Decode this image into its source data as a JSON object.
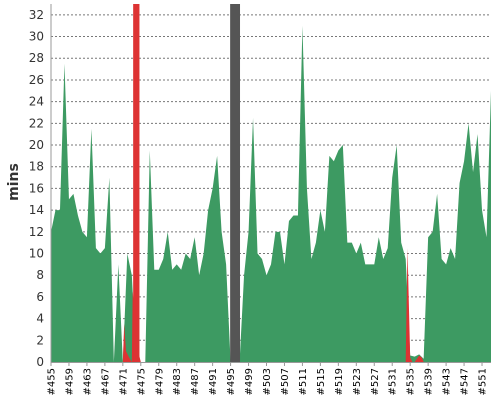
{
  "chart_data": {
    "type": "area",
    "title": "",
    "xlabel": "",
    "ylabel": "mins",
    "ylim": [
      0,
      33
    ],
    "y_ticks": [
      0,
      2,
      4,
      6,
      8,
      10,
      12,
      14,
      16,
      18,
      20,
      22,
      24,
      26,
      28,
      30,
      32
    ],
    "grid": true,
    "x_tick_labels": [
      "#455",
      "#459",
      "#463",
      "#467",
      "#471",
      "#475",
      "#479",
      "#483",
      "#487",
      "#491",
      "#495",
      "#499",
      "#503",
      "#507",
      "#511",
      "#515",
      "#519",
      "#523",
      "#527",
      "#531",
      "#535",
      "#539",
      "#543",
      "#547",
      "#551"
    ],
    "x_start": 455,
    "x_end": 553,
    "series": [
      {
        "status": "passed",
        "color": "#3d9a62",
        "points": [
          [
            455,
            12
          ],
          [
            456,
            14
          ],
          [
            457,
            14
          ],
          [
            458,
            27.5
          ],
          [
            459,
            15
          ],
          [
            460,
            15.5
          ],
          [
            461,
            13.5
          ],
          [
            462,
            12
          ],
          [
            463,
            11.5
          ],
          [
            464,
            21.5
          ],
          [
            465,
            10.5
          ],
          [
            466,
            10
          ],
          [
            467,
            10.5
          ],
          [
            468,
            17
          ],
          [
            469,
            0
          ],
          [
            470,
            9
          ],
          [
            471,
            0
          ],
          [
            472,
            10
          ],
          [
            473,
            8
          ],
          [
            474,
            0
          ],
          [
            475,
            0
          ],
          [
            476,
            0
          ],
          [
            477,
            19.5
          ],
          [
            478,
            8.5
          ],
          [
            479,
            8.5
          ],
          [
            480,
            9.5
          ],
          [
            481,
            12
          ],
          [
            482,
            8.5
          ],
          [
            483,
            9
          ],
          [
            484,
            8.5
          ],
          [
            485,
            10
          ],
          [
            486,
            9.5
          ],
          [
            487,
            11.5
          ],
          [
            488,
            8
          ],
          [
            489,
            10
          ],
          [
            490,
            14
          ],
          [
            491,
            16
          ],
          [
            492,
            19
          ],
          [
            493,
            12
          ],
          [
            494,
            9
          ],
          [
            495,
            0
          ],
          [
            496,
            0
          ],
          [
            497,
            0
          ],
          [
            498,
            8
          ],
          [
            499,
            12
          ],
          [
            500,
            22.5
          ],
          [
            501,
            10
          ],
          [
            502,
            9.5
          ],
          [
            503,
            8
          ],
          [
            504,
            9
          ],
          [
            505,
            12
          ],
          [
            506,
            12
          ],
          [
            507,
            9
          ],
          [
            508,
            13
          ],
          [
            509,
            13.5
          ],
          [
            510,
            13.5
          ],
          [
            511,
            31
          ],
          [
            512,
            16
          ],
          [
            513,
            9.5
          ],
          [
            514,
            11
          ],
          [
            515,
            14
          ],
          [
            516,
            12
          ],
          [
            517,
            19
          ],
          [
            518,
            18.5
          ],
          [
            519,
            19.5
          ],
          [
            520,
            20
          ],
          [
            521,
            11
          ],
          [
            522,
            11
          ],
          [
            523,
            10
          ],
          [
            524,
            11
          ],
          [
            525,
            9
          ],
          [
            526,
            9
          ],
          [
            527,
            9
          ],
          [
            528,
            11.5
          ],
          [
            529,
            9.5
          ],
          [
            530,
            10.5
          ],
          [
            531,
            17
          ],
          [
            532,
            20
          ],
          [
            533,
            11
          ],
          [
            534,
            9.5
          ],
          [
            535,
            0.6
          ],
          [
            536,
            0.5
          ],
          [
            537,
            0.7
          ],
          [
            538,
            0.3
          ],
          [
            539,
            11.5
          ],
          [
            540,
            12
          ],
          [
            541,
            15.5
          ],
          [
            542,
            9.5
          ],
          [
            543,
            9
          ],
          [
            544,
            10.5
          ],
          [
            545,
            9.5
          ],
          [
            546,
            16.5
          ],
          [
            547,
            18.5
          ],
          [
            548,
            22
          ],
          [
            549,
            17.5
          ],
          [
            550,
            21
          ],
          [
            551,
            14
          ],
          [
            552,
            11.5
          ],
          [
            553,
            25
          ]
        ]
      },
      {
        "status": "failed",
        "color": "#dd3333",
        "points": [
          [
            471,
            0
          ],
          [
            471.3,
            3.5
          ],
          [
            471.7,
            1
          ],
          [
            472.3,
            0.5
          ],
          [
            473,
            0
          ],
          [
            473.2,
            6.5
          ],
          [
            473.9,
            4
          ],
          [
            474.4,
            1
          ],
          [
            475,
            0
          ]
        ]
      },
      {
        "status": "failed",
        "color": "#dd3333",
        "points": [
          [
            534,
            0
          ],
          [
            534.4,
            10.5
          ],
          [
            535,
            0.4
          ],
          [
            535.5,
            0
          ]
        ]
      },
      {
        "status": "failed",
        "color": "#dd3333",
        "points": [
          [
            536,
            0
          ],
          [
            537,
            0.6
          ],
          [
            537.6,
            0.4
          ],
          [
            538,
            0
          ]
        ]
      }
    ],
    "bars": [
      {
        "status": "failed",
        "x": 474,
        "width": 1.4,
        "color": "#dd3333"
      },
      {
        "status": "aborted",
        "x": 496,
        "width": 2.2,
        "color": "#555555"
      }
    ]
  }
}
